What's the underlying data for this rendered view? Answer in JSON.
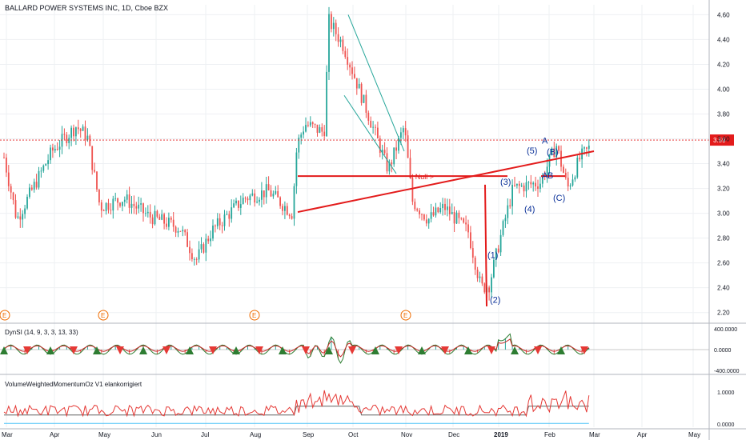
{
  "header": {
    "title": "BALLARD POWER SYSTEMS INC, 1D, Cboe BZX"
  },
  "colors": {
    "up": "#26a69a",
    "down": "#ef5350",
    "trendline": "#e31b1b",
    "wedge": "#26a69a",
    "wave_label": "#0c3299",
    "last_price_badge": "#e31b1b",
    "grid": "#eef0f3"
  },
  "chart_data": [
    {
      "type": "candlestick",
      "title": "BALLARD POWER SYSTEMS INC, 1D, Cboe BZX",
      "x_months": [
        "Mar",
        "Apr",
        "May",
        "Jun",
        "Jul",
        "Aug",
        "Sep",
        "Oct",
        "Nov",
        "Dec",
        "2019",
        "Feb",
        "Mar",
        "Apr",
        "May"
      ],
      "y_ticks": [
        "4.60",
        "4.40",
        "4.20",
        "4.00",
        "3.80",
        "3.60",
        "3.40",
        "3.20",
        "3.00",
        "2.80",
        "2.60",
        "2.40",
        "2.20"
      ],
      "ylim": [
        2.14,
        4.68
      ],
      "last_price": "3.59",
      "monthly_path": [
        {
          "month": "Mar",
          "close": 3.55
        },
        {
          "month": "Apr",
          "close": 3.55
        },
        {
          "month": "May",
          "close": 3.1
        },
        {
          "month": "Jun",
          "close": 2.92
        },
        {
          "month": "Jul",
          "close": 2.9
        },
        {
          "month": "Aug",
          "close": 3.15
        },
        {
          "month": "Sep",
          "close": 3.75
        },
        {
          "month": "Oct",
          "close": 3.7
        },
        {
          "month": "Nov",
          "close": 3.0
        },
        {
          "month": "Dec",
          "close": 2.65
        },
        {
          "month": "2019",
          "close": 2.9
        },
        {
          "month": "Feb",
          "close": 3.5
        },
        {
          "month": "Mar",
          "close": 3.59
        }
      ],
      "earnings_markers": [
        "E",
        "E",
        "E",
        "E"
      ],
      "annotations": [
        "(1)",
        "(2)",
        "(3)",
        "(4)",
        "(5)",
        "A",
        "(B)",
        "(C)",
        "A",
        "B"
      ],
      "neckline_label": "< Null >"
    },
    {
      "type": "line",
      "title": "DynSI (14, 9, 3, 3, 13, 33)",
      "y_ticks": [
        "400.0000",
        "0.0000",
        "-400.0000"
      ],
      "ylim": [
        -450,
        450
      ]
    },
    {
      "type": "line",
      "title": "VolumeWeightedMomentumOz V1 elankorrigiert",
      "y_ticks": [
        "1.0000",
        "0.0000"
      ],
      "ylim": [
        -0.1,
        1.5
      ]
    }
  ]
}
